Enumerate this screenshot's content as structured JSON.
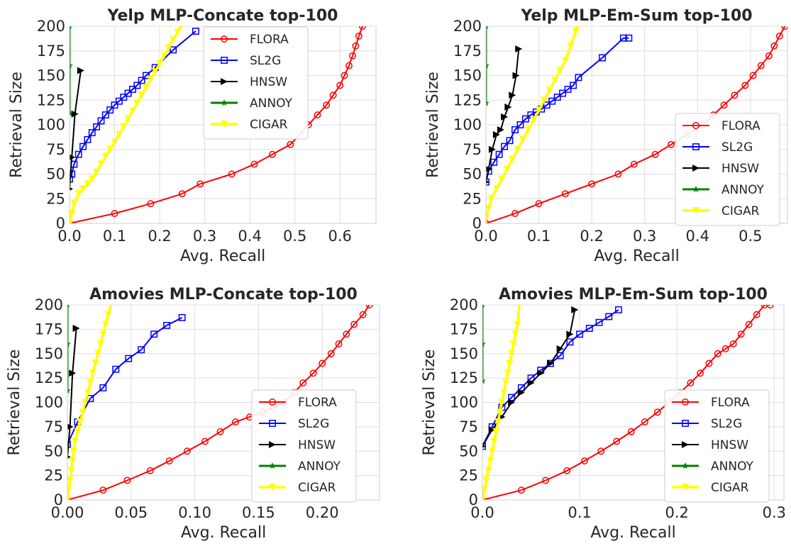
{
  "chart_data": [
    {
      "type": "line",
      "title": "Yelp MLP-Concate top-100",
      "xlabel": "Avg. Recall",
      "ylabel": "Retrieval Size",
      "xlim": [
        0,
        0.68
      ],
      "ylim": [
        0,
        200
      ],
      "xticks": [
        "0.0",
        "0.1",
        "0.2",
        "0.3",
        "0.4",
        "0.5",
        "0.6"
      ],
      "yticks": [
        "0",
        "25",
        "50",
        "75",
        "100",
        "125",
        "150",
        "175",
        "200"
      ],
      "grid": true,
      "legend_position": "top-center",
      "series": [
        {
          "name": "FLORA",
          "color": "#ff0000",
          "marker": "circle",
          "x": [
            0.0,
            0.1,
            0.18,
            0.25,
            0.29,
            0.36,
            0.41,
            0.45,
            0.49,
            0.53,
            0.55,
            0.57,
            0.585,
            0.6,
            0.61,
            0.62,
            0.628,
            0.635,
            0.642,
            0.65,
            0.66
          ],
          "y": [
            0,
            10,
            20,
            30,
            40,
            50,
            60,
            70,
            80,
            100,
            110,
            120,
            130,
            140,
            150,
            160,
            170,
            180,
            190,
            200,
            205
          ]
        },
        {
          "name": "SL2G",
          "color": "#0000ff",
          "marker": "square",
          "x": [
            0.0,
            0.005,
            0.01,
            0.02,
            0.03,
            0.04,
            0.05,
            0.06,
            0.07,
            0.08,
            0.09,
            0.1,
            0.11,
            0.12,
            0.13,
            0.14,
            0.15,
            0.16,
            0.17,
            0.19,
            0.23,
            0.28
          ],
          "y": [
            45,
            50,
            60,
            70,
            78,
            85,
            92,
            98,
            104,
            110,
            115,
            120,
            124,
            128,
            132,
            136,
            140,
            145,
            150,
            158,
            176,
            195
          ]
        },
        {
          "name": "HNSW",
          "color": "#000000",
          "marker": "triangle-right",
          "x": [
            0.0,
            0.005,
            0.012,
            0.025
          ],
          "y": [
            35,
            67,
            111,
            155
          ]
        },
        {
          "name": "ANNOY",
          "color": "#008000",
          "marker": "star",
          "x": [
            0.0,
            0.0,
            0.0
          ],
          "y": [
            112,
            160,
            200
          ]
        },
        {
          "name": "CIGAR",
          "color": "#ffff00",
          "marker": "triangle-down",
          "x": [
            0.0,
            0.005,
            0.01,
            0.02,
            0.03,
            0.04,
            0.05,
            0.06,
            0.07,
            0.08,
            0.09,
            0.1,
            0.11,
            0.12,
            0.13,
            0.14,
            0.15,
            0.16,
            0.17,
            0.18,
            0.19,
            0.2,
            0.21,
            0.22,
            0.23,
            0.24,
            0.25,
            0.26
          ],
          "y": [
            0,
            10,
            20,
            30,
            35,
            40,
            45,
            52,
            60,
            68,
            75,
            82,
            90,
            98,
            106,
            114,
            122,
            130,
            138,
            146,
            154,
            162,
            170,
            178,
            186,
            194,
            202,
            210
          ]
        }
      ]
    },
    {
      "type": "line",
      "title": "Yelp MLP-Em-Sum top-100",
      "xlabel": "Avg. Recall",
      "ylabel": "Retrieval Size",
      "xlim": [
        0,
        0.57
      ],
      "ylim": [
        0,
        200
      ],
      "xticks": [
        "0.0",
        "0.1",
        "0.2",
        "0.3",
        "0.4",
        "0.5"
      ],
      "yticks": [
        "0",
        "25",
        "50",
        "75",
        "100",
        "125",
        "150",
        "175",
        "200"
      ],
      "grid": true,
      "legend_position": "lower-right",
      "series": [
        {
          "name": "FLORA",
          "color": "#ff0000",
          "marker": "circle",
          "x": [
            0.0,
            0.055,
            0.1,
            0.15,
            0.2,
            0.25,
            0.28,
            0.32,
            0.35,
            0.38,
            0.41,
            0.43,
            0.45,
            0.47,
            0.49,
            0.505,
            0.52,
            0.535,
            0.545,
            0.555,
            0.565
          ],
          "y": [
            0,
            10,
            20,
            30,
            40,
            50,
            60,
            70,
            80,
            90,
            100,
            110,
            120,
            130,
            140,
            150,
            160,
            170,
            180,
            190,
            200
          ]
        },
        {
          "name": "SL2G",
          "color": "#0000ff",
          "marker": "square",
          "x": [
            0.0,
            0.005,
            0.015,
            0.025,
            0.035,
            0.045,
            0.055,
            0.065,
            0.075,
            0.085,
            0.095,
            0.105,
            0.115,
            0.125,
            0.135,
            0.145,
            0.155,
            0.165,
            0.175,
            0.22,
            0.26,
            0.27
          ],
          "y": [
            42,
            53,
            62,
            70,
            78,
            84,
            95,
            100,
            106,
            110,
            113,
            116,
            120,
            124,
            128,
            132,
            136,
            140,
            148,
            168,
            188,
            188
          ]
        },
        {
          "name": "HNSW",
          "color": "#000000",
          "marker": "triangle-right",
          "x": [
            0.0,
            0.005,
            0.012,
            0.02,
            0.028,
            0.035,
            0.042,
            0.05,
            0.057,
            0.062
          ],
          "y": [
            42,
            55,
            75,
            90,
            95,
            108,
            118,
            130,
            150,
            177
          ]
        },
        {
          "name": "ANNOY",
          "color": "#008000",
          "marker": "star",
          "x": [
            0.0,
            0.0,
            0.0
          ],
          "y": [
            122,
            160,
            200
          ]
        },
        {
          "name": "CIGAR",
          "color": "#ffff00",
          "marker": "triangle-down",
          "x": [
            0.0,
            0.005,
            0.01,
            0.02,
            0.03,
            0.04,
            0.05,
            0.06,
            0.07,
            0.08,
            0.09,
            0.1,
            0.11,
            0.12,
            0.13,
            0.14,
            0.15,
            0.16,
            0.17,
            0.18
          ],
          "y": [
            5,
            15,
            25,
            35,
            45,
            55,
            65,
            75,
            85,
            95,
            105,
            115,
            125,
            135,
            145,
            155,
            165,
            180,
            195,
            210
          ]
        }
      ]
    },
    {
      "type": "line",
      "title": "Amovies MLP-Concate top-100",
      "xlabel": "Avg. Recall",
      "ylabel": "Retrieval Size",
      "xlim": [
        0,
        0.245
      ],
      "ylim": [
        0,
        200
      ],
      "xticks": [
        "0.00",
        "0.05",
        "0.10",
        "0.15",
        "0.20"
      ],
      "yticks": [
        "0",
        "25",
        "50",
        "75",
        "100",
        "125",
        "150",
        "175",
        "200"
      ],
      "grid": true,
      "legend_position": "lower-right",
      "series": [
        {
          "name": "FLORA",
          "color": "#ff0000",
          "marker": "circle",
          "x": [
            0.0,
            0.028,
            0.047,
            0.065,
            0.08,
            0.094,
            0.108,
            0.12,
            0.132,
            0.143,
            0.153,
            0.162,
            0.17,
            0.178,
            0.185,
            0.193,
            0.2,
            0.207,
            0.213,
            0.219,
            0.225,
            0.232,
            0.237
          ],
          "y": [
            0,
            10,
            20,
            30,
            40,
            50,
            60,
            70,
            80,
            85,
            90,
            95,
            100,
            110,
            120,
            130,
            140,
            150,
            160,
            170,
            180,
            190,
            200
          ]
        },
        {
          "name": "SL2G",
          "color": "#0000ff",
          "marker": "square",
          "x": [
            0.0,
            0.008,
            0.018,
            0.028,
            0.038,
            0.048,
            0.058,
            0.068,
            0.078,
            0.09
          ],
          "y": [
            57,
            80,
            104,
            115,
            134,
            145,
            154,
            170,
            179,
            187
          ]
        },
        {
          "name": "HNSW",
          "color": "#000000",
          "marker": "triangle-right",
          "x": [
            0.0,
            0.002,
            0.004,
            0.007
          ],
          "y": [
            44,
            75,
            130,
            176
          ]
        },
        {
          "name": "ANNOY",
          "color": "#008000",
          "marker": "star",
          "x": [
            0.0,
            0.0,
            0.0
          ],
          "y": [
            112,
            160,
            200
          ]
        },
        {
          "name": "CIGAR",
          "color": "#ffff00",
          "marker": "triangle-down",
          "x": [
            0.0,
            0.001,
            0.002,
            0.003,
            0.004,
            0.005,
            0.006,
            0.008,
            0.01,
            0.012,
            0.014,
            0.016,
            0.018,
            0.02,
            0.022,
            0.024,
            0.026,
            0.028,
            0.03,
            0.032,
            0.034
          ],
          "y": [
            0,
            10,
            20,
            30,
            40,
            50,
            60,
            70,
            80,
            90,
            100,
            110,
            120,
            130,
            140,
            150,
            160,
            170,
            180,
            190,
            200
          ]
        }
      ]
    },
    {
      "type": "line",
      "title": "Amovies MLP-Em-Sum top-100",
      "xlabel": "Avg. Recall",
      "ylabel": "Retrieval Size",
      "xlim": [
        0,
        0.31
      ],
      "ylim": [
        0,
        200
      ],
      "xticks": [
        "0.0",
        "0.1",
        "0.2",
        "0.3"
      ],
      "yticks": [
        "0",
        "25",
        "50",
        "75",
        "100",
        "125",
        "150",
        "175",
        "200"
      ],
      "grid": true,
      "legend_position": "lower-right",
      "series": [
        {
          "name": "FLORA",
          "color": "#ff0000",
          "marker": "circle",
          "x": [
            0.0,
            0.04,
            0.065,
            0.087,
            0.105,
            0.122,
            0.138,
            0.153,
            0.167,
            0.18,
            0.192,
            0.203,
            0.214,
            0.224,
            0.233,
            0.242,
            0.25,
            0.258,
            0.266,
            0.274,
            0.282,
            0.29,
            0.296
          ],
          "y": [
            0,
            10,
            20,
            30,
            40,
            50,
            60,
            70,
            80,
            90,
            100,
            110,
            120,
            130,
            140,
            150,
            155,
            160,
            170,
            180,
            190,
            200,
            200
          ]
        },
        {
          "name": "SL2G",
          "color": "#0000ff",
          "marker": "square",
          "x": [
            0.0,
            0.01,
            0.02,
            0.03,
            0.04,
            0.05,
            0.06,
            0.07,
            0.08,
            0.09,
            0.1,
            0.11,
            0.12,
            0.13,
            0.14
          ],
          "y": [
            55,
            75,
            95,
            105,
            115,
            125,
            133,
            140,
            148,
            162,
            170,
            176,
            182,
            188,
            195
          ]
        },
        {
          "name": "HNSW",
          "color": "#000000",
          "marker": "triangle-right",
          "x": [
            0.0,
            0.01,
            0.02,
            0.03,
            0.04,
            0.05,
            0.06,
            0.07,
            0.08,
            0.09,
            0.095
          ],
          "y": [
            55,
            72,
            85,
            100,
            110,
            120,
            130,
            140,
            155,
            170,
            195
          ]
        },
        {
          "name": "ANNOY",
          "color": "#008000",
          "marker": "star",
          "x": [
            0.0,
            0.0,
            0.0
          ],
          "y": [
            122,
            160,
            200
          ]
        },
        {
          "name": "CIGAR",
          "color": "#ffff00",
          "marker": "triangle-down",
          "x": [
            0.0,
            0.002,
            0.004,
            0.006,
            0.008,
            0.01,
            0.012,
            0.014,
            0.016,
            0.018,
            0.02,
            0.022,
            0.024,
            0.026,
            0.028,
            0.03,
            0.032,
            0.034,
            0.036,
            0.038
          ],
          "y": [
            0,
            10,
            20,
            30,
            40,
            50,
            60,
            70,
            80,
            90,
            100,
            110,
            120,
            130,
            140,
            150,
            160,
            170,
            180,
            200
          ]
        }
      ]
    }
  ]
}
